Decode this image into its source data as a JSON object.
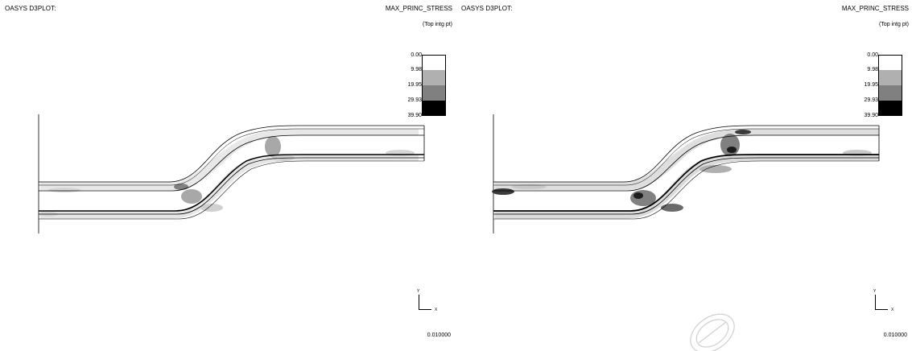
{
  "panels": [
    {
      "app_title": "OASYS D3PLOT:",
      "result_title": "MAX_PRINC_STRESS",
      "result_sub": "(Top intg pt)",
      "legend": {
        "labels": [
          "0.00",
          "9.98",
          "19.95",
          "29.93",
          "39.90"
        ],
        "colors": [
          "#ffffff",
          "#b0b0b0",
          "#808080",
          "#000000"
        ]
      },
      "axis": {
        "y": "Y",
        "x": "X"
      },
      "time": "0.010000"
    },
    {
      "app_title": "OASYS D3PLOT:",
      "result_title": "MAX_PRINC_STRESS",
      "result_sub": "(Top intg pt)",
      "legend": {
        "labels": [
          "0.00",
          "9.98",
          "19.95",
          "29.93",
          "39.90"
        ],
        "colors": [
          "#ffffff",
          "#b0b0b0",
          "#808080",
          "#000000"
        ]
      },
      "axis": {
        "y": "Y",
        "x": "X"
      },
      "time": "0.010000"
    }
  ],
  "colors": {
    "mesh_outline": "#000000",
    "shade_light": "#d6d6d6",
    "shade_mid": "#a8a8a8",
    "shade_dark": "#3a3a3a"
  }
}
